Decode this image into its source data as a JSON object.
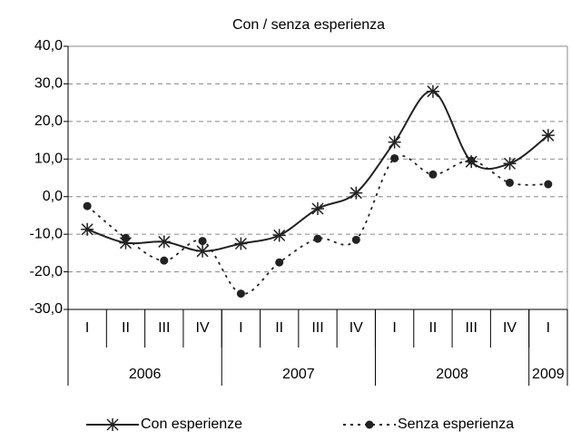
{
  "chart_data": {
    "type": "line",
    "title": "Con / senza esperienza",
    "groups": [
      {
        "label": "2006",
        "categories": [
          "I",
          "II",
          "III",
          "IV"
        ]
      },
      {
        "label": "2007",
        "categories": [
          "I",
          "II",
          "III",
          "IV"
        ]
      },
      {
        "label": "2008",
        "categories": [
          "I",
          "II",
          "III",
          "IV"
        ]
      },
      {
        "label": "2009",
        "categories": [
          "I"
        ]
      }
    ],
    "series": [
      {
        "name": "Con esperienze",
        "color": "#222222",
        "line_style": "solid",
        "marker": "star",
        "values": [
          -8.7,
          -12.3,
          -12.0,
          -14.5,
          -12.5,
          -10.3,
          -3.2,
          1.0,
          14.5,
          28.0,
          9.3,
          8.8,
          16.3
        ]
      },
      {
        "name": "Senza esperienza",
        "color": "#222222",
        "line_style": "dashed",
        "marker": "circle",
        "values": [
          -2.5,
          -11.0,
          -17.0,
          -11.8,
          -25.8,
          -17.5,
          -11.2,
          -11.5,
          10.2,
          5.9,
          9.6,
          3.7,
          3.3
        ]
      }
    ],
    "ylim": [
      -30,
      40
    ],
    "yticks": [
      {
        "value": -30,
        "label": "-30,0"
      },
      {
        "value": -20,
        "label": "-20,0"
      },
      {
        "value": -10,
        "label": "-10,0"
      },
      {
        "value": 0,
        "label": "0,0"
      },
      {
        "value": 10,
        "label": "10,0"
      },
      {
        "value": 20,
        "label": "20,0"
      },
      {
        "value": 30,
        "label": "30,0"
      },
      {
        "value": 40,
        "label": "40,0"
      }
    ],
    "grid": true,
    "smooth": true,
    "legend": "bottom"
  }
}
